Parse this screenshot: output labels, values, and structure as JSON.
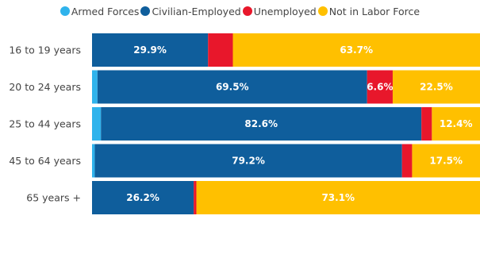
{
  "chart_data": {
    "type": "bar",
    "orientation": "horizontal",
    "stacked": "100%",
    "legend_position": "top",
    "grid": false,
    "categories": [
      "16 to 19 years",
      "20 to 24 years",
      "25 to 44 years",
      "45 to 64 years",
      "65 years +"
    ],
    "series": [
      {
        "name": "Armed Forces",
        "color": "#2FB3EC",
        "values": [
          0.0,
          1.4,
          2.3,
          0.7,
          0.0
        ],
        "labels": [
          "",
          "",
          "",
          "",
          ""
        ]
      },
      {
        "name": "Civilian-Employed",
        "color": "#0F5E9C",
        "values": [
          29.9,
          69.5,
          82.6,
          79.2,
          26.2
        ],
        "labels": [
          "29.9%",
          "69.5%",
          "82.6%",
          "79.2%",
          "26.2%"
        ]
      },
      {
        "name": "Unemployed",
        "color": "#E8172B",
        "values": [
          6.4,
          6.6,
          2.7,
          2.6,
          0.7
        ],
        "labels": [
          "",
          "6.6%",
          "",
          "",
          ""
        ]
      },
      {
        "name": "Not in Labor Force",
        "color": "#FFC000",
        "values": [
          63.7,
          22.5,
          12.4,
          17.5,
          73.1
        ],
        "labels": [
          "63.7%",
          "22.5%",
          "12.4%",
          "17.5%",
          "73.1%"
        ]
      }
    ]
  }
}
